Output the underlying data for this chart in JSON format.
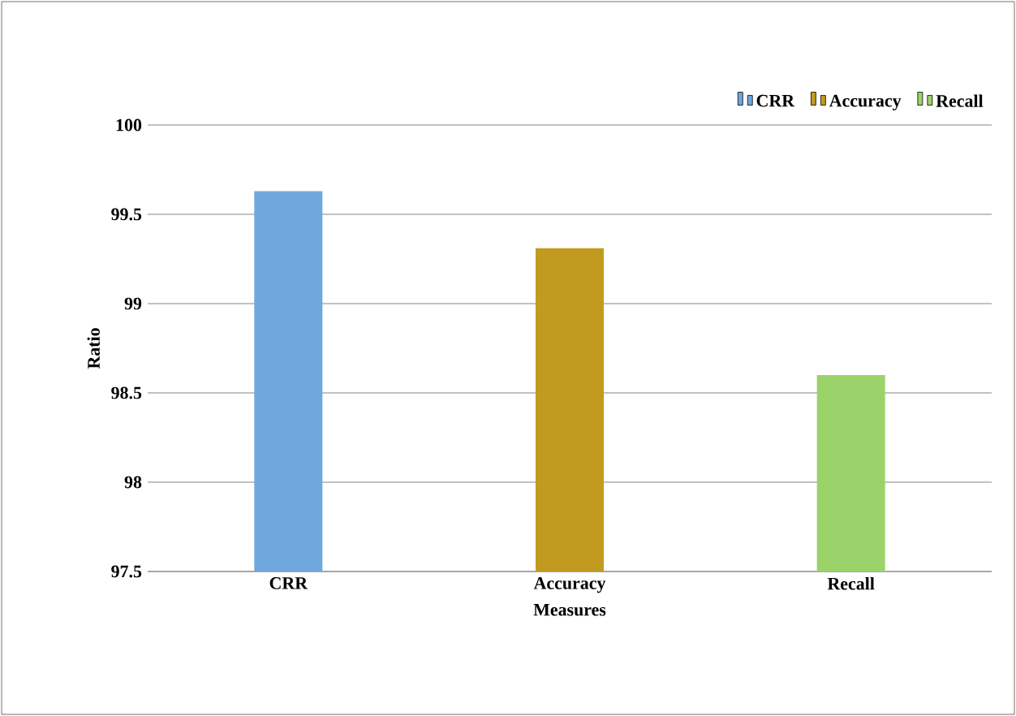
{
  "chart_data": {
    "type": "bar",
    "xlabel": "Measures",
    "ylabel": "Ratio",
    "categories": [
      "CRR",
      "Accuracy",
      "Recall"
    ],
    "series": [
      {
        "name": "CRR",
        "color": "#6fa8dc",
        "values": [
          99.63,
          null,
          null
        ]
      },
      {
        "name": "Accuracy",
        "color": "#c29a1f",
        "values": [
          null,
          99.31,
          null
        ]
      },
      {
        "name": "Recall",
        "color": "#9bd36a",
        "values": [
          null,
          null,
          98.6
        ]
      }
    ],
    "ylim": [
      97.5,
      100
    ],
    "yticks": [
      97.5,
      98,
      98.5,
      99,
      99.5,
      100
    ],
    "grid": "y",
    "legend": "top right"
  }
}
